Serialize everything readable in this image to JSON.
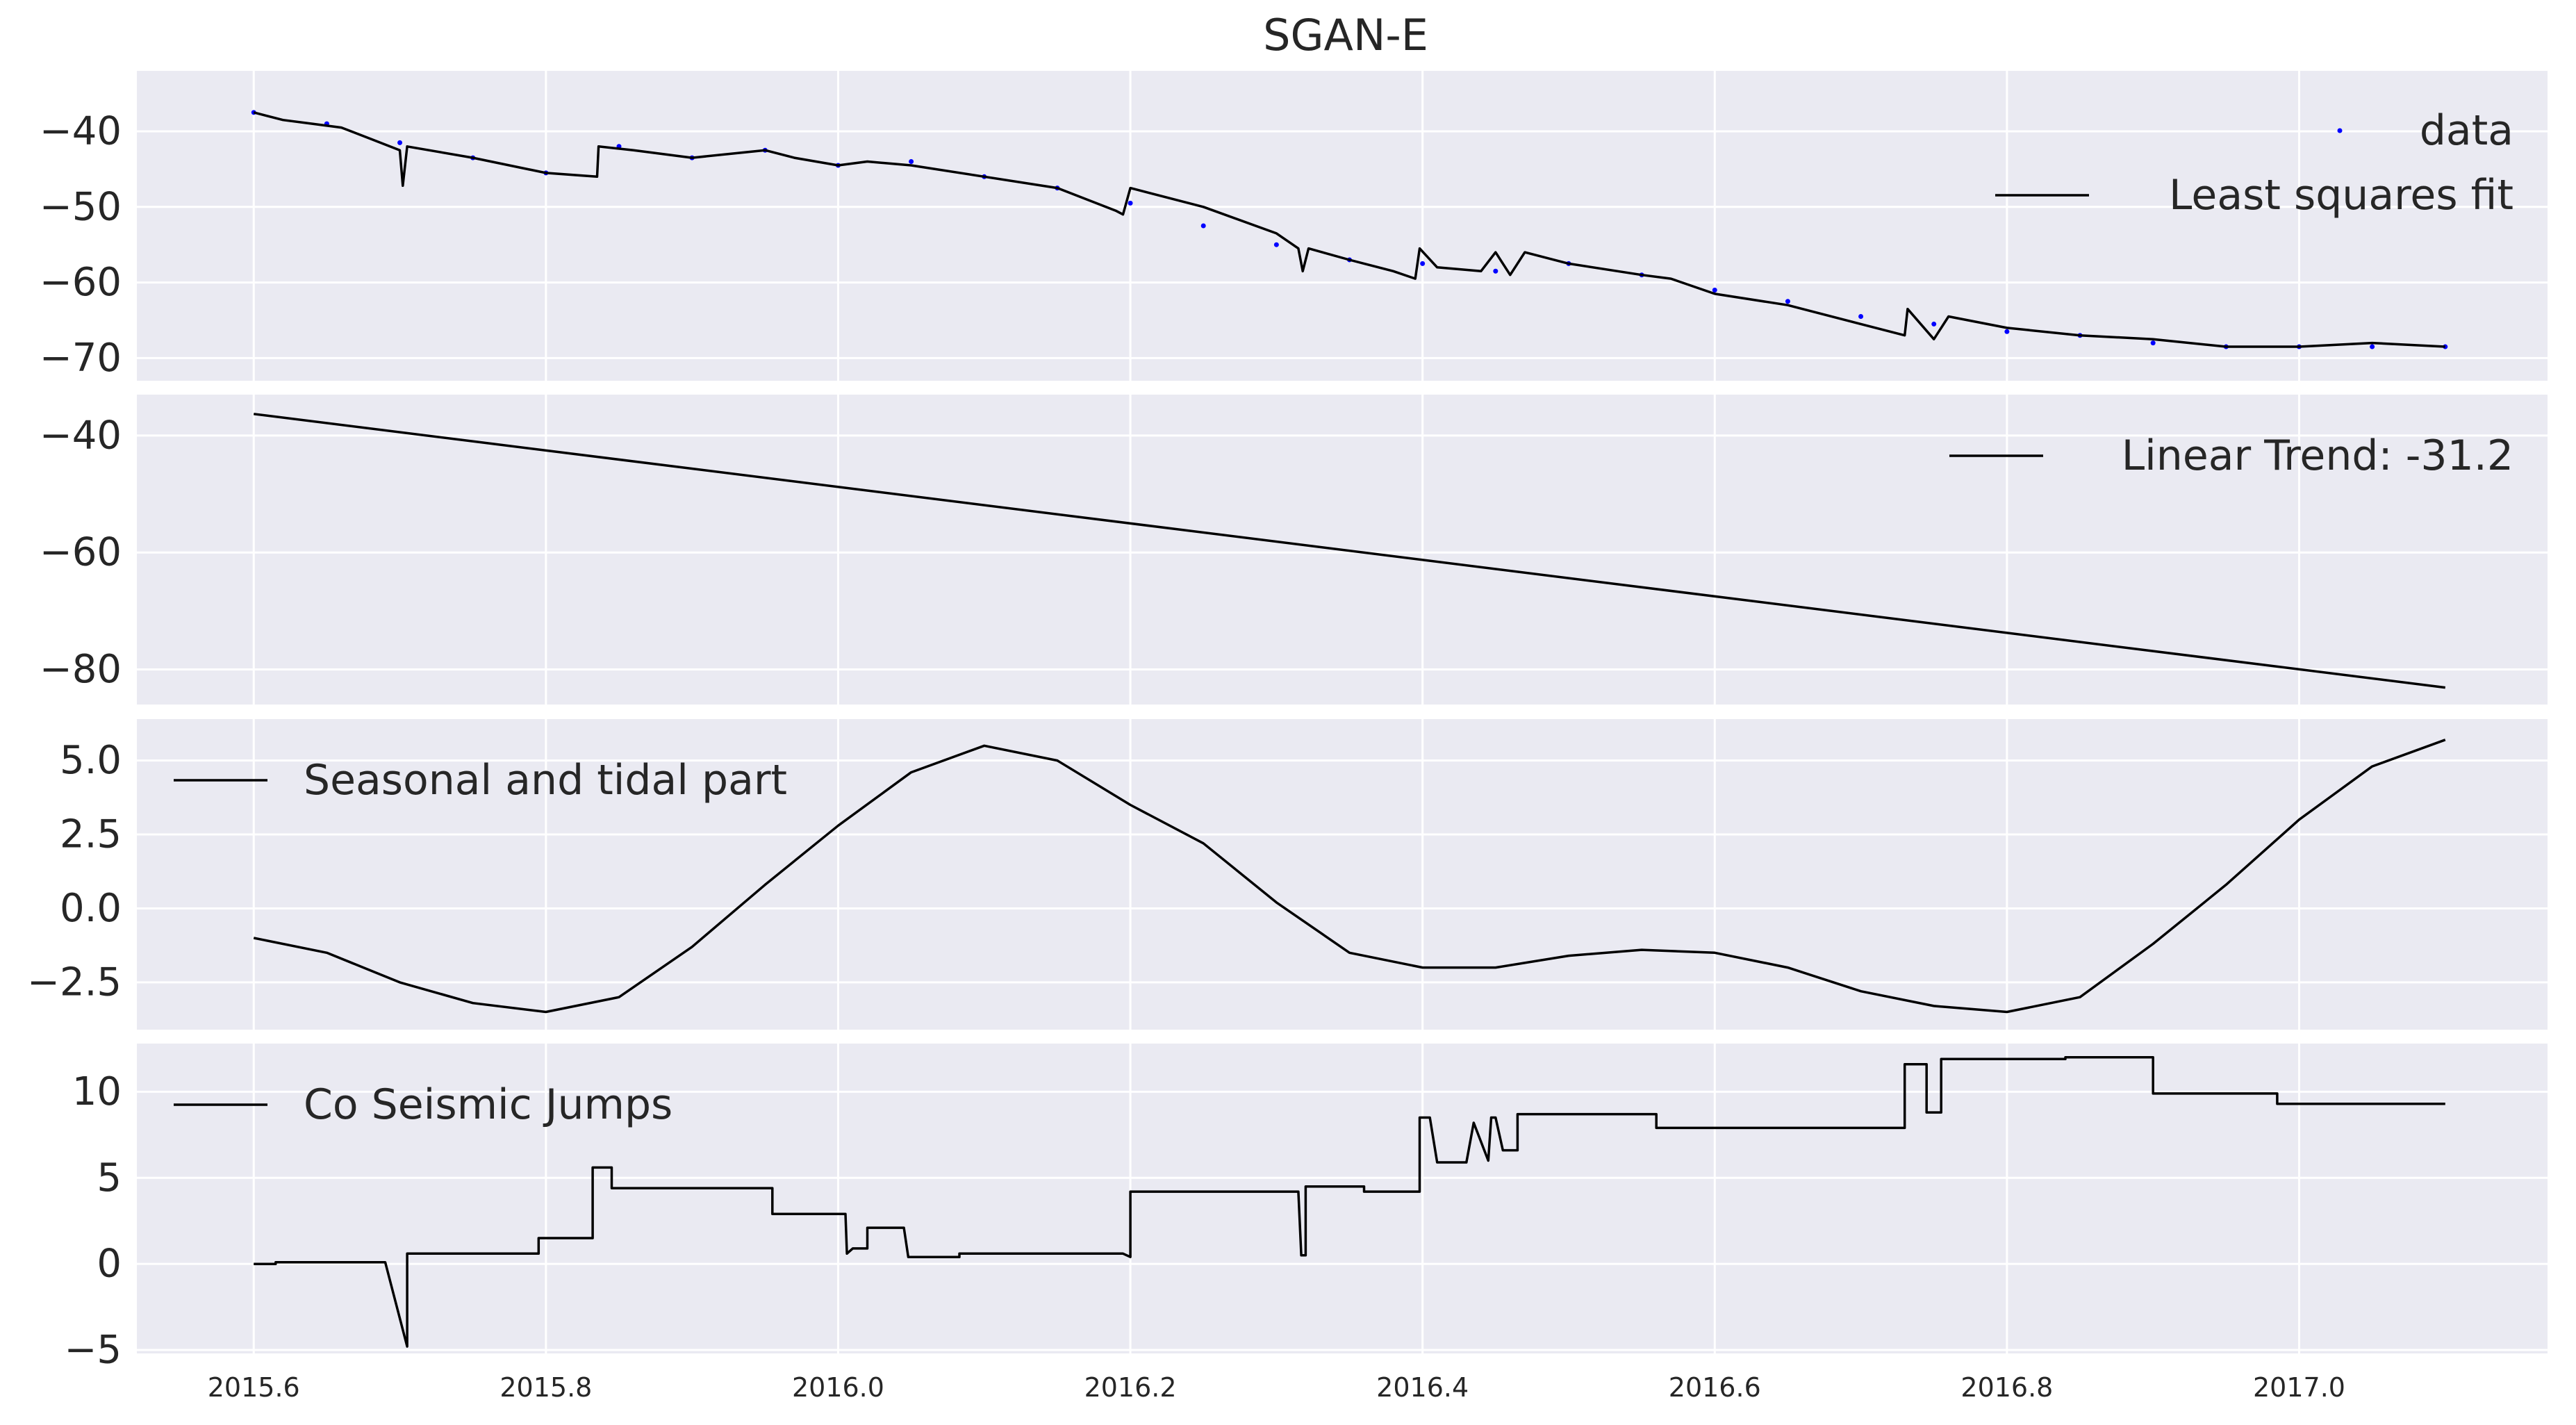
{
  "figure": {
    "title": "SGAN-E",
    "background": "#ffffff",
    "panel_background": "#EAEAF2",
    "grid_color": "#ffffff",
    "line_color": "#000000",
    "data_color": "#0000ff"
  },
  "chart_data": [
    {
      "type": "scatter",
      "title": "SGAN-E",
      "xlabel": "",
      "ylabel": "",
      "ylim": [
        -73,
        -32
      ],
      "yticks": [
        -40,
        -50,
        -60,
        -70
      ],
      "yticklabels": [
        "−40",
        "−50",
        "−60",
        "−70"
      ],
      "grid": true,
      "legend_placement": "top-right",
      "series": [
        {
          "name": "data",
          "style": "points",
          "x": [
            2015.6,
            2015.65,
            2015.7,
            2015.75,
            2015.8,
            2015.85,
            2015.9,
            2015.95,
            2016.0,
            2016.05,
            2016.1,
            2016.15,
            2016.2,
            2016.25,
            2016.3,
            2016.35,
            2016.4,
            2016.45,
            2016.5,
            2016.55,
            2016.6,
            2016.65,
            2016.7,
            2016.75,
            2016.8,
            2016.85,
            2016.9,
            2016.95,
            2017.0,
            2017.05,
            2017.1
          ],
          "y": [
            -37.5,
            -39,
            -41.5,
            -43.5,
            -45.5,
            -42,
            -43.5,
            -42.5,
            -44.5,
            -44,
            -46,
            -47.5,
            -49.5,
            -52.5,
            -55,
            -57,
            -57.5,
            -58.5,
            -57.5,
            -59,
            -61,
            -62.5,
            -64.5,
            -65.5,
            -66.5,
            -67,
            -68,
            -68.5,
            -68.5,
            -68.5,
            -68.5
          ]
        },
        {
          "name": "Least squares fit",
          "style": "line",
          "x": [
            2015.6,
            2015.62,
            2015.64,
            2015.66,
            2015.68,
            2015.7,
            2015.702,
            2015.705,
            2015.75,
            2015.8,
            2015.835,
            2015.836,
            2015.86,
            2015.9,
            2015.95,
            2015.97,
            2016.0,
            2016.02,
            2016.05,
            2016.1,
            2016.15,
            2016.19,
            2016.195,
            2016.2,
            2016.25,
            2016.3,
            2016.315,
            2016.318,
            2016.322,
            2016.35,
            2016.38,
            2016.395,
            2016.398,
            2016.41,
            2016.44,
            2016.45,
            2016.46,
            2016.47,
            2016.5,
            2016.55,
            2016.57,
            2016.6,
            2016.65,
            2016.7,
            2016.73,
            2016.732,
            2016.75,
            2016.76,
            2016.8,
            2016.85,
            2016.9,
            2016.95,
            2017.0,
            2017.05,
            2017.1
          ],
          "y": [
            -37.5,
            -38.5,
            -39,
            -39.5,
            -41,
            -42.5,
            -47.2,
            -42,
            -43.5,
            -45.5,
            -46,
            -42,
            -42.5,
            -43.5,
            -42.5,
            -43.5,
            -44.5,
            -44,
            -44.5,
            -46,
            -47.5,
            -50.5,
            -51,
            -47.5,
            -50,
            -53.5,
            -55.5,
            -58.5,
            -55.5,
            -57,
            -58.5,
            -59.5,
            -55.5,
            -58,
            -58.5,
            -56,
            -59,
            -56,
            -57.5,
            -59,
            -59.5,
            -61.5,
            -63,
            -65.5,
            -67,
            -63.5,
            -67.5,
            -64.5,
            -66,
            -67,
            -67.5,
            -68.5,
            -68.5,
            -68,
            -68.5
          ]
        }
      ]
    },
    {
      "type": "line",
      "xlabel": "",
      "ylabel": "",
      "ylim": [
        -86,
        -33
      ],
      "yticks": [
        -40,
        -60,
        -80
      ],
      "yticklabels": [
        "−40",
        "−60",
        "−80"
      ],
      "grid": true,
      "legend_placement": "top-right",
      "series": [
        {
          "name": "Linear Trend: -31.2",
          "x": [
            2015.6,
            2017.1
          ],
          "y": [
            -36.3,
            -83.1
          ]
        }
      ]
    },
    {
      "type": "line",
      "xlabel": "",
      "ylabel": "",
      "ylim": [
        -4.1,
        6.4
      ],
      "yticks": [
        5.0,
        2.5,
        0.0,
        -2.5
      ],
      "yticklabels": [
        "5.0",
        "2.5",
        "0.0",
        "−2.5"
      ],
      "grid": true,
      "legend_placement": "top-left",
      "series": [
        {
          "name": "Seasonal and tidal part",
          "x": [
            2015.6,
            2015.65,
            2015.7,
            2015.75,
            2015.8,
            2015.85,
            2015.9,
            2015.95,
            2016.0,
            2016.05,
            2016.1,
            2016.15,
            2016.2,
            2016.25,
            2016.3,
            2016.35,
            2016.4,
            2016.45,
            2016.5,
            2016.55,
            2016.6,
            2016.65,
            2016.7,
            2016.75,
            2016.8,
            2016.85,
            2016.9,
            2016.95,
            2017.0,
            2017.05,
            2017.1
          ],
          "y": [
            -1.0,
            -1.5,
            -2.5,
            -3.2,
            -3.5,
            -3.0,
            -1.3,
            0.8,
            2.8,
            4.6,
            5.5,
            5.0,
            3.5,
            2.2,
            0.2,
            -1.5,
            -2.0,
            -2.0,
            -1.6,
            -1.4,
            -1.5,
            -2.0,
            -2.8,
            -3.3,
            -3.5,
            -3.0,
            -1.2,
            0.8,
            3.0,
            4.8,
            5.7
          ]
        }
      ]
    },
    {
      "type": "line",
      "xlabel": "",
      "ylabel": "",
      "ylim": [
        -5.2,
        12.8
      ],
      "yticks": [
        10,
        5,
        0,
        -5
      ],
      "yticklabels": [
        "10",
        "5",
        "0",
        "−5"
      ],
      "xticks": [
        2015.6,
        2015.8,
        2016.0,
        2016.2,
        2016.4,
        2016.6,
        2016.8,
        2017.0
      ],
      "xticklabels": [
        "2015.6",
        "2015.8",
        "2016.0",
        "2016.2",
        "2016.4",
        "2016.6",
        "2016.8",
        "2017.0"
      ],
      "grid": true,
      "legend_placement": "top-left",
      "series": [
        {
          "name": "Co Seismic Jumps",
          "x": [
            2015.6,
            2015.615,
            2015.615,
            2015.69,
            2015.705,
            2015.705,
            2015.707,
            2015.707,
            2015.795,
            2015.795,
            2015.832,
            2015.832,
            2015.845,
            2015.845,
            2015.86,
            2015.86,
            2015.955,
            2015.955,
            2016.005,
            2016.006,
            2016.01,
            2016.015,
            2016.02,
            2016.02,
            2016.045,
            2016.048,
            2016.083,
            2016.083,
            2016.195,
            2016.2,
            2016.2,
            2016.315,
            2016.317,
            2016.32,
            2016.32,
            2016.36,
            2016.36,
            2016.398,
            2016.398,
            2016.405,
            2016.41,
            2016.41,
            2016.43,
            2016.435,
            2016.435,
            2016.445,
            2016.447,
            2016.45,
            2016.455,
            2016.455,
            2016.465,
            2016.465,
            2016.47,
            2016.473,
            2016.473,
            2016.56,
            2016.56,
            2016.73,
            2016.73,
            2016.745,
            2016.745,
            2016.755,
            2016.755,
            2016.84,
            2016.84,
            2016.9,
            2016.9,
            2016.985,
            2016.985,
            2017.1
          ],
          "y": [
            0.0,
            0.0,
            0.1,
            0.1,
            -4.8,
            0.6,
            0.6,
            0.6,
            0.6,
            1.5,
            1.5,
            5.6,
            5.6,
            4.4,
            4.4,
            4.4,
            4.4,
            2.9,
            2.9,
            0.6,
            0.9,
            0.9,
            0.9,
            2.1,
            2.1,
            0.4,
            0.4,
            0.6,
            0.6,
            0.4,
            4.2,
            4.2,
            0.5,
            0.5,
            4.5,
            4.5,
            4.2,
            4.2,
            8.5,
            8.5,
            5.9,
            5.9,
            5.9,
            8.2,
            8.2,
            6.0,
            8.5,
            8.5,
            6.6,
            6.6,
            6.6,
            8.7,
            8.7,
            8.7,
            8.7,
            8.7,
            7.9,
            7.9,
            11.6,
            11.6,
            8.8,
            8.8,
            11.9,
            11.9,
            12.0,
            12.0,
            9.9,
            9.9,
            9.3,
            9.3
          ]
        }
      ]
    }
  ]
}
